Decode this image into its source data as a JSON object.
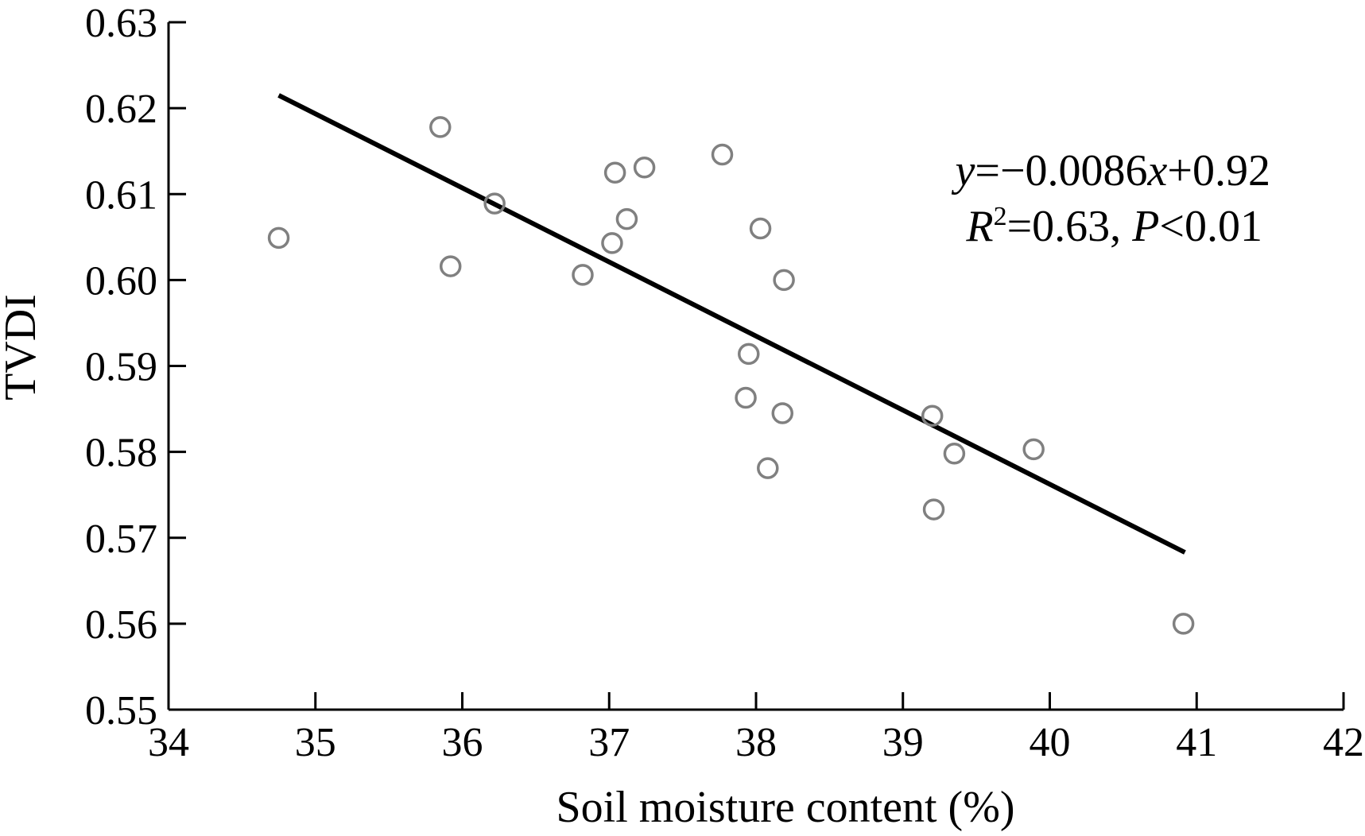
{
  "chart_data": {
    "type": "scatter",
    "xlabel": "Soil moisture content (%)",
    "ylabel": "TVDI",
    "xlim": [
      34,
      42
    ],
    "ylim": [
      0.55,
      0.63
    ],
    "xticks": [
      34,
      35,
      36,
      37,
      38,
      39,
      40,
      41,
      42
    ],
    "yticks": [
      0.55,
      0.56,
      0.57,
      0.58,
      0.59,
      0.6,
      0.61,
      0.62,
      0.63
    ],
    "xtick_labels": [
      "34",
      "35",
      "36",
      "37",
      "38",
      "39",
      "40",
      "41",
      "42"
    ],
    "ytick_labels": [
      "0.55",
      "0.56",
      "0.57",
      "0.58",
      "0.59",
      "0.60",
      "0.61",
      "0.62",
      "0.63"
    ],
    "points": [
      {
        "x": 34.75,
        "y": 0.6049
      },
      {
        "x": 35.85,
        "y": 0.6178
      },
      {
        "x": 35.92,
        "y": 0.6016
      },
      {
        "x": 36.22,
        "y": 0.6089
      },
      {
        "x": 36.82,
        "y": 0.6006
      },
      {
        "x": 37.02,
        "y": 0.6043
      },
      {
        "x": 37.04,
        "y": 0.6125
      },
      {
        "x": 37.12,
        "y": 0.6071
      },
      {
        "x": 37.24,
        "y": 0.6131
      },
      {
        "x": 37.77,
        "y": 0.6146
      },
      {
        "x": 37.93,
        "y": 0.5863
      },
      {
        "x": 37.95,
        "y": 0.5914
      },
      {
        "x": 38.03,
        "y": 0.606
      },
      {
        "x": 38.08,
        "y": 0.5781
      },
      {
        "x": 38.18,
        "y": 0.5845
      },
      {
        "x": 38.19,
        "y": 0.6
      },
      {
        "x": 39.2,
        "y": 0.5842
      },
      {
        "x": 39.21,
        "y": 0.5733
      },
      {
        "x": 39.35,
        "y": 0.5798
      },
      {
        "x": 39.89,
        "y": 0.5803
      },
      {
        "x": 40.91,
        "y": 0.56
      }
    ],
    "fit_line": {
      "x": [
        34.75,
        40.92
      ],
      "y": [
        0.6215,
        0.5683
      ]
    },
    "annotation": {
      "line1": {
        "y_var": "y",
        "rest1": "=−0.0086",
        "x_var": "x",
        "rest2": "+0.92"
      },
      "line2": {
        "r_var": "R",
        "sup": "2",
        "rest1": "=0.63, ",
        "p_var": "P",
        "rest2": "<0.01"
      }
    }
  }
}
